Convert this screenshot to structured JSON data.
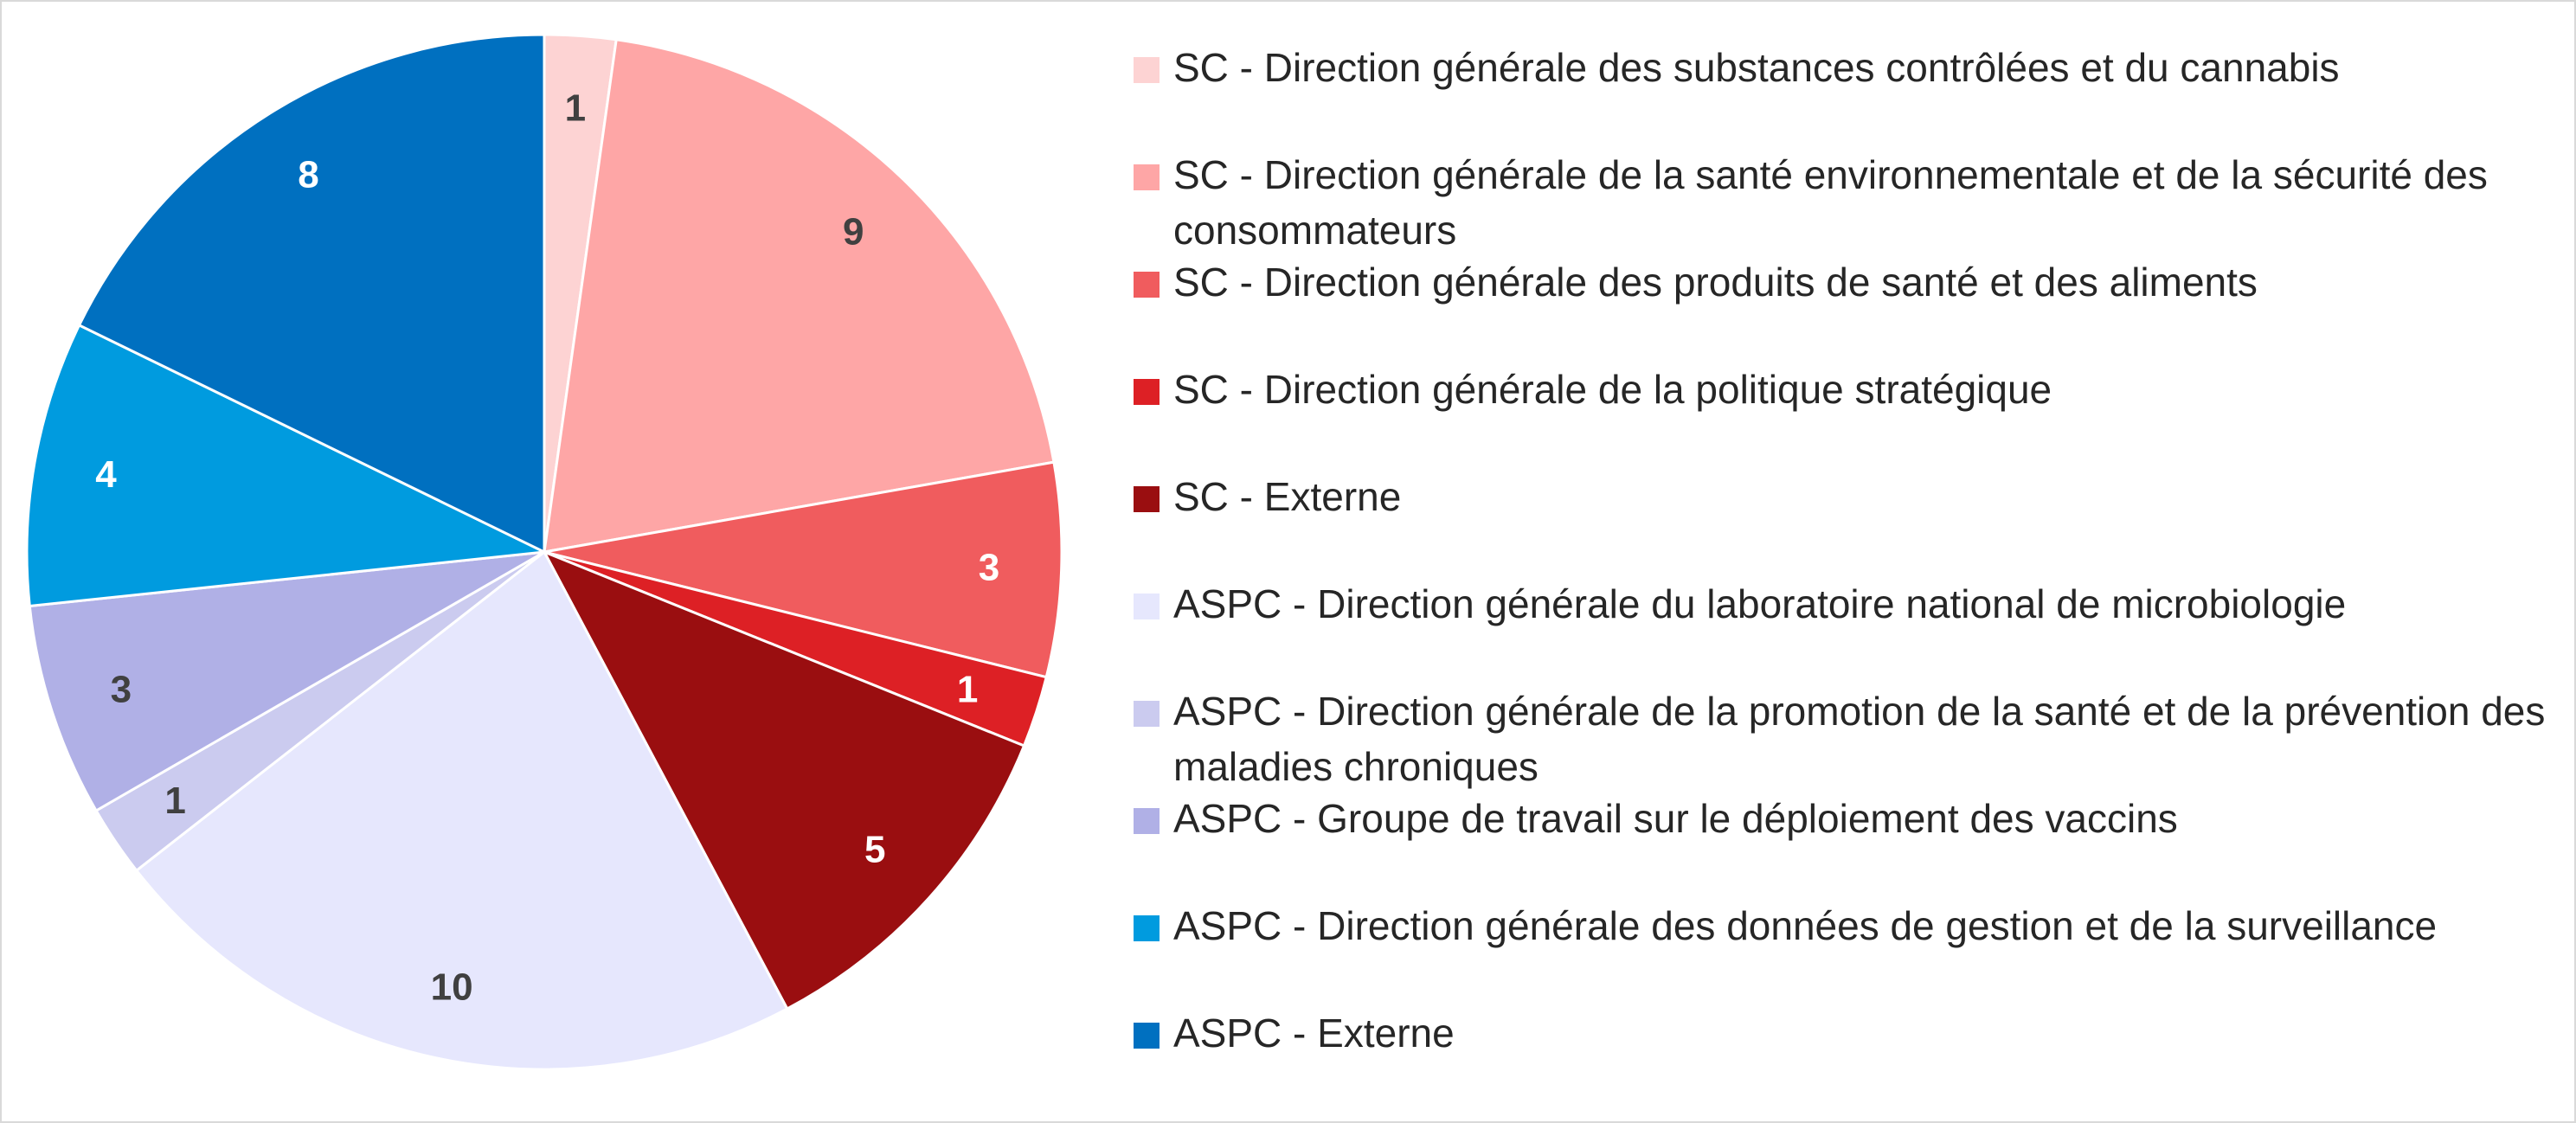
{
  "chart_data": {
    "type": "pie",
    "title": "",
    "legend_position": "right",
    "slices": [
      {
        "label": "SC - Direction générale des substances contrôlées et du cannabis",
        "value": 1,
        "color": "#fdd3d3",
        "label_color": "#404040"
      },
      {
        "label": "SC - Direction générale de la santé environnementale et de la sécurité des consommateurs",
        "value": 9,
        "color": "#fea6a6",
        "label_color": "#404040"
      },
      {
        "label": "SC - Direction générale des produits de santé et des aliments",
        "value": 3,
        "color": "#f05c5e",
        "label_color": "#ffffff"
      },
      {
        "label": "SC - Direction générale de la politique stratégique",
        "value": 1,
        "color": "#dd2025",
        "label_color": "#ffffff"
      },
      {
        "label": "SC - Externe",
        "value": 5,
        "color": "#9a0e10",
        "label_color": "#ffffff"
      },
      {
        "label": "ASPC - Direction générale du laboratoire national de microbiologie",
        "value": 10,
        "color": "#e6e7fd",
        "label_color": "#404040"
      },
      {
        "label": "ASPC - Direction générale de la promotion de la santé et de la prévention des maladies chroniques",
        "value": 1,
        "color": "#cbcbef",
        "label_color": "#404040"
      },
      {
        "label": "ASPC - Groupe de travail sur le déploiement des vaccins",
        "value": 3,
        "color": "#b0b0e6",
        "label_color": "#404040"
      },
      {
        "label": "ASPC - Direction générale des données de gestion et de la surveillance",
        "value": 4,
        "color": "#009bdf",
        "label_color": "#ffffff"
      },
      {
        "label": "ASPC - Externe",
        "value": 8,
        "color": "#0070c0",
        "label_color": "#ffffff"
      }
    ]
  }
}
